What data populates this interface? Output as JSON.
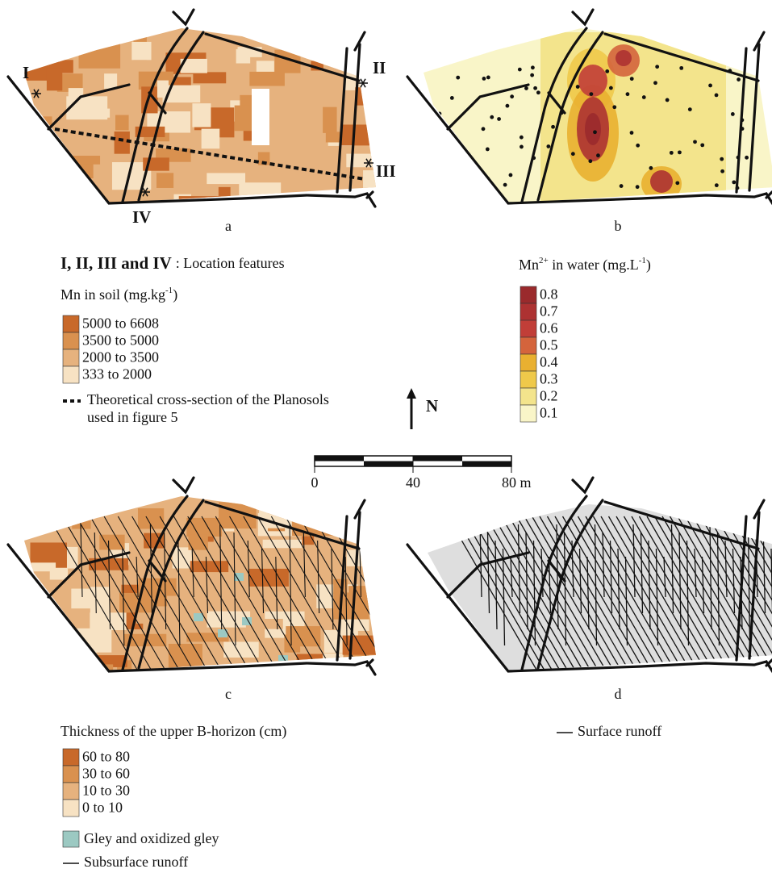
{
  "panels": {
    "a": "a",
    "b": "b",
    "c": "c",
    "d": "d"
  },
  "locations": {
    "I": "I",
    "II": "II",
    "III": "III",
    "IV": "IV"
  },
  "legend_a": {
    "features_bold": "I, II, III and IV",
    "features_text": ": Location features",
    "title": {
      "main": "Mn in soil (mg.kg",
      "sup": "-1",
      "end": ")"
    },
    "items": [
      {
        "label": "5000 to 6608",
        "color": "#c8692a"
      },
      {
        "label": "3500 to 5000",
        "color": "#d9914f"
      },
      {
        "label": "2000 to 3500",
        "color": "#e6b27e"
      },
      {
        "label": "333 to 2000",
        "color": "#f7e2c3"
      }
    ],
    "cross_section": [
      "Theoretical cross-section of the Planosols",
      "used in figure 5"
    ]
  },
  "legend_b": {
    "title": {
      "main": "Mn",
      "sup": "2+",
      "mid": " in water (mg.L",
      "sup2": "-1",
      "end": ")"
    },
    "items": [
      {
        "label": 0.8,
        "color": "#9a2a2c"
      },
      {
        "label": 0.7,
        "color": "#ad3232"
      },
      {
        "label": 0.6,
        "color": "#c13e38"
      },
      {
        "label": 0.5,
        "color": "#d4643c"
      },
      {
        "label": 0.4,
        "color": "#e9b030"
      },
      {
        "label": 0.3,
        "color": "#efc94a"
      },
      {
        "label": 0.2,
        "color": "#f3e48c"
      },
      {
        "label": 0.1,
        "color": "#f9f5c8"
      }
    ]
  },
  "north": "N",
  "scale": {
    "ticks": [
      "0",
      "40",
      "80 m"
    ]
  },
  "legend_c": {
    "title": "Thickness of the upper B-horizon (cm)",
    "items": [
      {
        "label": "60 to 80",
        "color": "#c8692a"
      },
      {
        "label": "30 to 60",
        "color": "#d9914f"
      },
      {
        "label": "10 to 30",
        "color": "#e6b27e"
      },
      {
        "label": "0 to 10",
        "color": "#f7e2c3"
      }
    ],
    "gley": {
      "label": "Gley and oxidized gley",
      "color": "#9cc9c2"
    },
    "runoff": "Subsurface runoff"
  },
  "legend_d": {
    "runoff": "Surface runoff"
  }
}
